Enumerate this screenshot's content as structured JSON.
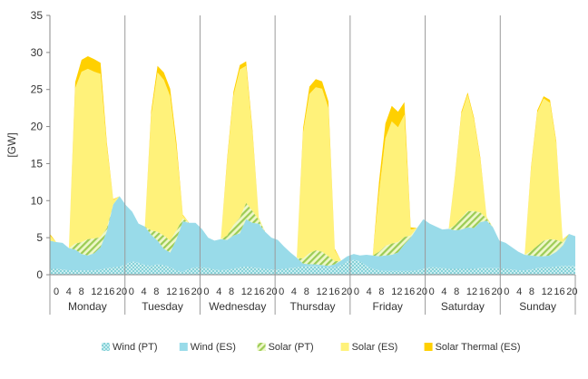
{
  "chart_data": {
    "type": "area",
    "stacked": true,
    "ylabel": "[GW]",
    "ylim": [
      0,
      35
    ],
    "yticks": [
      0,
      5,
      10,
      15,
      20,
      25,
      30,
      35
    ],
    "hour_ticks": [
      "0",
      "4",
      "8",
      "12",
      "16",
      "20"
    ],
    "grid": "vertical day separators",
    "legend_position": "bottom",
    "days": [
      "Monday",
      "Tuesday",
      "Wednesday",
      "Thursday",
      "Friday",
      "Saturday",
      "Sunday"
    ],
    "x_hours": [
      0,
      2,
      4,
      6,
      8,
      10,
      12,
      14,
      16,
      18,
      20,
      22
    ],
    "series": [
      {
        "name": "Wind (PT)",
        "color": "#8ed3d9",
        "pattern": "dots",
        "days": [
          [
            0.8,
            0.8,
            0.7,
            0.6,
            0.6,
            0.6,
            0.6,
            0.6,
            0.7,
            0.9,
            1.0,
            1.1
          ],
          [
            1.4,
            1.8,
            1.6,
            1.3,
            1.2,
            1.4,
            1.3,
            1.0,
            0.6,
            0.4,
            0.8,
            1.0
          ],
          [
            1.0,
            0.9,
            0.7,
            0.6,
            0.7,
            0.8,
            1.0,
            1.1,
            1.0,
            0.9,
            0.8,
            0.7
          ],
          [
            0.7,
            0.8,
            0.9,
            1.0,
            1.1,
            1.2,
            1.2,
            1.1,
            1.0,
            1.0,
            1.3,
            1.8
          ],
          [
            2.0,
            1.8,
            1.2,
            0.8,
            0.6,
            0.5,
            0.5,
            0.5,
            0.5,
            0.5,
            0.6,
            0.8
          ],
          [
            1.0,
            1.0,
            0.9,
            0.8,
            0.8,
            0.8,
            0.8,
            0.8,
            0.9,
            0.9,
            0.9,
            0.9
          ],
          [
            0.8,
            0.7,
            0.6,
            0.6,
            0.7,
            0.9,
            1.0,
            1.0,
            1.1,
            1.2,
            1.2,
            1.2
          ]
        ]
      },
      {
        "name": "Wind (ES)",
        "color": "#99dbe9",
        "pattern": "solid",
        "days": [
          [
            3.8,
            3.6,
            3.6,
            3.0,
            2.8,
            2.2,
            2.0,
            2.3,
            3.0,
            5.0,
            8.5,
            9.5
          ],
          [
            8.0,
            6.7,
            5.3,
            5.2,
            4.2,
            3.2,
            2.2,
            2.0,
            4.2,
            6.8,
            6.2,
            6.0
          ],
          [
            5.2,
            4.1,
            3.9,
            4.2,
            4.0,
            4.5,
            4.6,
            6.4,
            6.0,
            6.0,
            5.0,
            4.3
          ],
          [
            4.0,
            3.0,
            2.1,
            1.3,
            0.4,
            0.2,
            0.2,
            0.2,
            0.2,
            0.4,
            0.6,
            0.7
          ],
          [
            0.8,
            0.8,
            1.5,
            1.8,
            1.9,
            2.1,
            2.2,
            2.5,
            3.6,
            4.5,
            5.7,
            6.7
          ],
          [
            5.9,
            5.5,
            5.2,
            5.4,
            5.2,
            5.3,
            5.6,
            5.5,
            6.2,
            6.4,
            5.5,
            3.7
          ],
          [
            3.5,
            3.0,
            2.5,
            2.1,
            1.9,
            1.6,
            1.5,
            1.6,
            2.0,
            2.7,
            4.3,
            4.0
          ]
        ]
      },
      {
        "name": "Solar (PT)",
        "color": "#a7d35a",
        "pattern": "stripes",
        "days": [
          [
            0,
            0,
            0,
            0,
            0.8,
            1.6,
            2.2,
            2.0,
            1.4,
            0.4,
            0,
            0
          ],
          [
            0,
            0,
            0,
            0,
            0.6,
            1.2,
            1.8,
            1.6,
            1.2,
            0.4,
            0,
            0
          ],
          [
            0,
            0,
            0,
            0,
            0.6,
            1.4,
            2.1,
            2.2,
            1.6,
            0.5,
            0,
            0
          ],
          [
            0,
            0,
            0,
            0,
            0.7,
            1.5,
            1.9,
            1.8,
            1.3,
            0.4,
            0,
            0
          ],
          [
            0,
            0,
            0,
            0,
            0.6,
            1.3,
            1.5,
            1.4,
            1.0,
            0.3,
            0,
            0
          ],
          [
            0,
            0,
            0,
            0,
            0.7,
            1.6,
            2.2,
            2.3,
            1.3,
            0.3,
            0,
            0
          ],
          [
            0,
            0,
            0,
            0,
            0.6,
            1.4,
            2.1,
            2.2,
            1.6,
            0.5,
            0,
            0
          ]
        ]
      },
      {
        "name": "Solar (ES)",
        "color": "#fff27a",
        "pattern": "solid",
        "days": [
          [
            0.7,
            0,
            0,
            0,
            21,
            23,
            23,
            22.5,
            22,
            11,
            0.6,
            0
          ],
          [
            0,
            0,
            0,
            0,
            15.5,
            21.5,
            21,
            19.5,
            11,
            0.4,
            0,
            0
          ],
          [
            0,
            0,
            0,
            0,
            10,
            17.5,
            20,
            18.5,
            10.5,
            0.3,
            0,
            0
          ],
          [
            0,
            0,
            0,
            0,
            17,
            21.5,
            22,
            22,
            20,
            1.5,
            0,
            0
          ],
          [
            0,
            0,
            0,
            0,
            8,
            14.5,
            16.5,
            15.5,
            16.5,
            0.8,
            0,
            0
          ],
          [
            0,
            0,
            0,
            0,
            6.5,
            14,
            15.7,
            12.3,
            7.1,
            0.2,
            0,
            0
          ],
          [
            0,
            0,
            0,
            0,
            11,
            18,
            19.2,
            18.4,
            13,
            0.4,
            0,
            0
          ]
        ]
      },
      {
        "name": "Solar Thermal (ES)",
        "color": "#ffd000",
        "pattern": "solid",
        "days": [
          [
            0.2,
            0,
            0,
            0,
            0.8,
            1.6,
            1.7,
            1.7,
            1.5,
            0.5,
            0.1,
            0
          ],
          [
            0,
            0,
            0,
            0,
            0.6,
            0.9,
            1.0,
            1.0,
            0.8,
            0.1,
            0,
            0
          ],
          [
            0,
            0,
            0,
            0,
            0.4,
            0.5,
            0.6,
            0.6,
            0.5,
            0,
            0,
            0
          ],
          [
            0,
            0,
            0,
            0,
            0.6,
            1.0,
            1.1,
            1.0,
            0.9,
            0.2,
            0,
            0
          ],
          [
            0,
            0,
            0,
            0,
            1.5,
            2.0,
            2.1,
            2.1,
            1.7,
            0.3,
            0,
            0
          ],
          [
            0,
            0,
            0,
            0,
            0.2,
            0.3,
            0.3,
            0.3,
            0.3,
            0,
            0,
            0
          ],
          [
            0,
            0,
            0,
            0,
            0.3,
            0.3,
            0.3,
            0.4,
            0.3,
            0,
            0,
            0
          ]
        ]
      }
    ]
  }
}
